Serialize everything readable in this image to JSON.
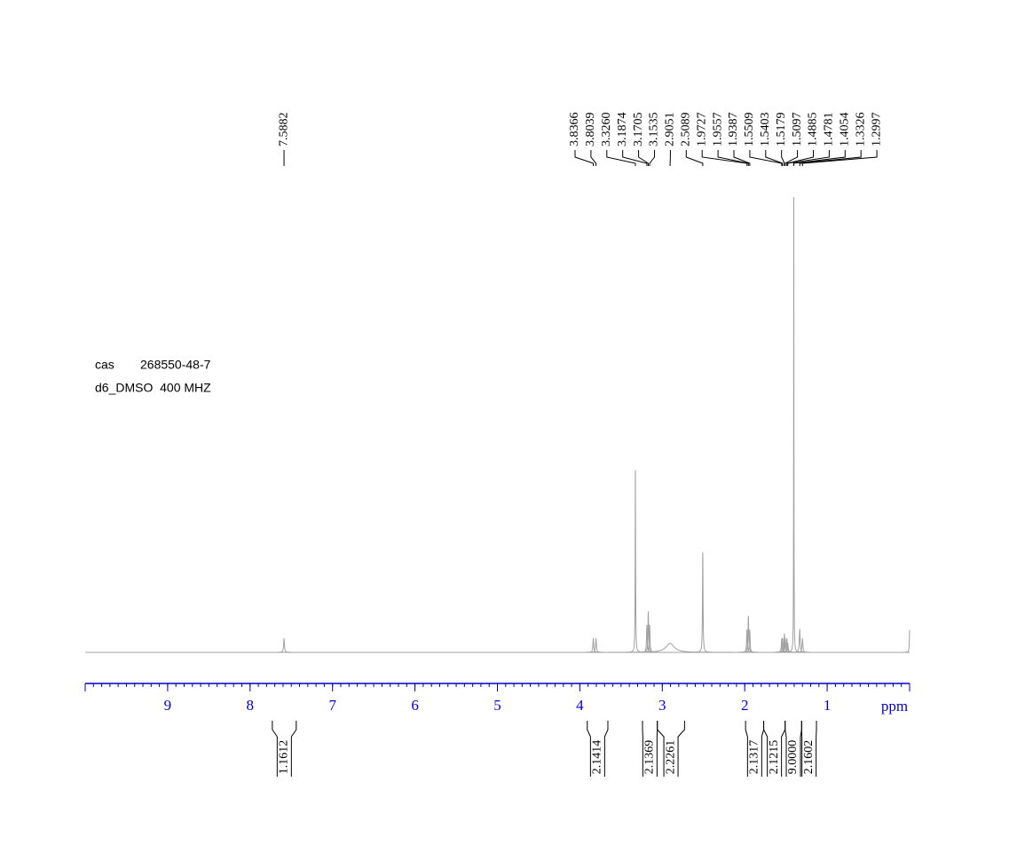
{
  "chart_data": {
    "type": "nmr",
    "xlabel": "ppm",
    "xlim": [
      10,
      0
    ],
    "xticks": [
      9,
      8,
      7,
      6,
      5,
      4,
      3,
      2,
      1
    ],
    "xminor_step": 0.1,
    "ylim": [
      0,
      100
    ],
    "color": "#a0a0a0",
    "axis_color": "#0000cc",
    "info": {
      "cas_label": "cas",
      "cas": "268550-48-7",
      "solvent": "d6_DMSO  400 MHZ"
    },
    "x": [
      7.588,
      3.837,
      3.804,
      3.326,
      3.187,
      3.17,
      3.153,
      2.905,
      2.509,
      1.973,
      1.956,
      1.939,
      1.551,
      1.54,
      1.518,
      1.51,
      1.489,
      1.478,
      1.405,
      1.333,
      1.3,
      0.0
    ],
    "values": [
      3,
      3,
      3,
      40,
      6,
      9,
      6,
      2,
      22,
      5,
      8,
      5,
      3,
      3,
      4,
      3,
      3,
      2,
      100,
      5,
      3,
      5
    ],
    "widths": [
      0.006,
      0.006,
      0.006,
      0.003,
      0.005,
      0.005,
      0.005,
      0.06,
      0.004,
      0.005,
      0.005,
      0.005,
      0.006,
      0.006,
      0.006,
      0.006,
      0.006,
      0.006,
      0.002,
      0.006,
      0.006,
      0.004
    ],
    "peak_labels": [
      7.5882,
      3.8366,
      3.8039,
      {
        "value": 3.326,
        "label": "3.3260"
      },
      3.1874,
      3.1705,
      3.1535,
      2.9051,
      2.5089,
      1.9727,
      1.9557,
      1.9387,
      1.5509,
      1.5403,
      1.5179,
      1.5097,
      1.4885,
      1.4781,
      1.4054,
      1.3326,
      1.2997
    ],
    "integrals": [
      {
        "from": 7.73,
        "to": 7.44,
        "value": 1.1612
      },
      {
        "from": 3.91,
        "to": 3.66,
        "value": 2.1414
      },
      {
        "from": 3.24,
        "to": 3.06,
        "value": 2.1369
      },
      {
        "from": 3.06,
        "to": 2.73,
        "value": 2.2261
      },
      {
        "from": 1.99,
        "to": 1.77,
        "value": 2.1317
      },
      {
        "from": 1.77,
        "to": 1.51,
        "value": 2.1215
      },
      {
        "from": 1.51,
        "to": 1.31,
        "value": {
          "value": 9,
          "label": "9.0000"
        }
      },
      {
        "from": 1.31,
        "to": 1.13,
        "value": 2.1602
      }
    ]
  }
}
